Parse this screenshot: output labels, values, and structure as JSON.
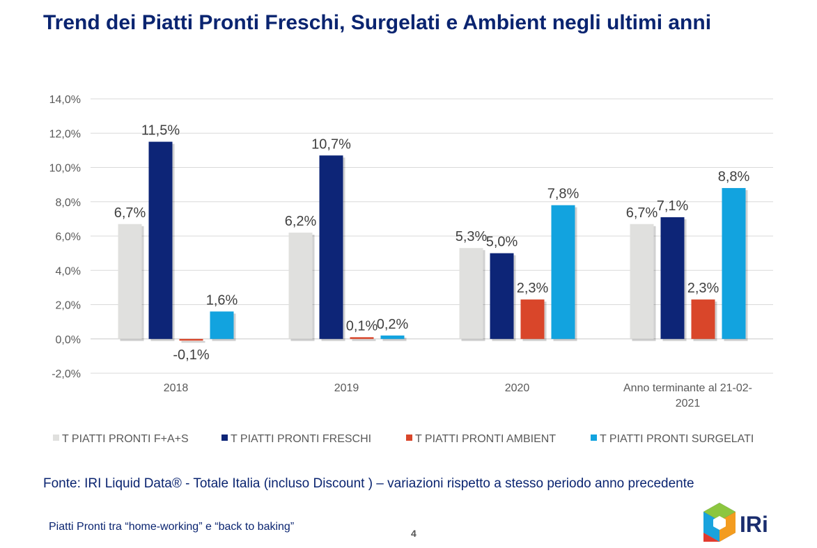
{
  "title": "Trend dei Piatti Pronti Freschi, Surgelati e Ambient negli ultimi anni",
  "source_note": "Fonte: IRI Liquid Data® - Totale Italia (incluso Discount ) – variazioni rispetto a stesso periodo anno precedente",
  "footer": {
    "text": "Piatti Pronti tra “home-working” e “back to baking”",
    "page_number": "4"
  },
  "logo": {
    "text": "IRi",
    "icon": "iri-cube-logo"
  },
  "chart_data": {
    "type": "bar",
    "categories": [
      [
        "2018"
      ],
      [
        "2019"
      ],
      [
        "2020"
      ],
      [
        "Anno terminante al 21-02-",
        "2021"
      ]
    ],
    "series": [
      {
        "name": "T PIATTI PRONTI F+A+S",
        "color": "#e0e0de",
        "values": [
          6.7,
          6.2,
          5.3,
          6.7
        ],
        "labels": [
          "6,7%",
          "6,2%",
          "5,3%",
          "6,7%"
        ]
      },
      {
        "name": "T PIATTI PRONTI FRESCHI",
        "color": "#0d2577",
        "values": [
          11.5,
          10.7,
          5.0,
          7.1
        ],
        "labels": [
          "11,5%",
          "10,7%",
          "5,0%",
          "7,1%"
        ]
      },
      {
        "name": "T PIATTI PRONTI AMBIENT",
        "color": "#d9462a",
        "values": [
          -0.1,
          0.1,
          2.3,
          2.3
        ],
        "labels": [
          "-0,1%",
          "0,1%",
          "2,3%",
          "2,3%"
        ]
      },
      {
        "name": "T PIATTI PRONTI SURGELATI",
        "color": "#12a3df",
        "values": [
          1.6,
          0.2,
          7.8,
          8.8
        ],
        "labels": [
          "1,6%",
          "0,2%",
          "7,8%",
          "8,8%"
        ]
      }
    ],
    "ylim": [
      -2,
      14
    ],
    "yticks": [
      -2,
      0,
      2,
      4,
      6,
      8,
      10,
      12,
      14
    ],
    "ytick_labels": [
      "-2,0%",
      "0,0%",
      "2,0%",
      "4,0%",
      "6,0%",
      "8,0%",
      "10,0%",
      "12,0%",
      "14,0%"
    ],
    "grid": true,
    "legend_position": "bottom"
  }
}
